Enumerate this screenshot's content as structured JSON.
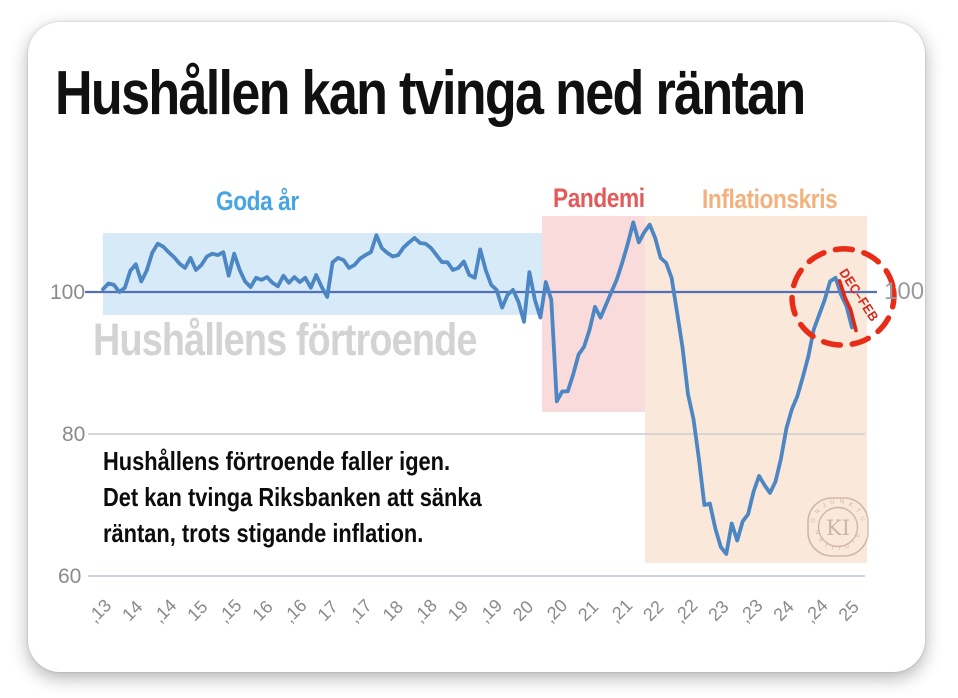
{
  "page": {
    "title": "Hushållen kan tvinga ned räntan"
  },
  "chart": {
    "watermark": "Hushållens förtroende",
    "regions": [
      {
        "label": "Goda år",
        "label_color": "#47a5e3",
        "band_color": "#d7eaf8"
      },
      {
        "label": "Pandemi",
        "label_color": "#e25a5a",
        "band_color": "#f8dbda"
      },
      {
        "label": "Inflationskris",
        "label_color": "#f3b17e",
        "band_color": "#fae8db"
      }
    ],
    "annotation": {
      "label": "DEC–FEB",
      "color": "#d8281c"
    },
    "y_axis_left": [
      "100",
      "80",
      "60"
    ],
    "y_axis_right": "100",
    "seal": {
      "monogram": "KI",
      "top_text": "KONJUNKTUR",
      "bottom_text": "INSTITUTET"
    }
  },
  "caption": {
    "line1": "Hushållens förtroende faller igen.",
    "line2": "Det kan tvinga Riksbanken att sänka",
    "line3": "räntan, trots stigande inflation."
  },
  "chart_data": {
    "type": "line",
    "title": "Hushållens förtroende",
    "baseline": 100,
    "y_ticks": [
      100,
      80,
      60
    ],
    "ylim": [
      58,
      112
    ],
    "grid": "horizontal",
    "x_tick_labels": [
      "‚13",
      "14",
      "‚14",
      "15",
      "‚15",
      "16",
      "‚16",
      "17",
      "‚17",
      "18",
      "‚18",
      "19",
      "‚19",
      "20",
      "‚20",
      "21",
      "‚21",
      "22",
      "‚22",
      "23",
      "‚23",
      "24",
      "‚24",
      "25"
    ],
    "regions": [
      {
        "label": "Goda år",
        "from_x_label": "‚13",
        "to_x_label": "20",
        "value_span": [
          96,
          108.5
        ]
      },
      {
        "label": "Pandemi",
        "from_x_label": "20",
        "to_x_label": "‚21",
        "value_span": [
          83,
          110.8
        ]
      },
      {
        "label": "Inflationskris",
        "from_x_label": "‚21",
        "to_x_label": "25",
        "value_span": [
          61.5,
          110.8
        ]
      }
    ],
    "highlight_last_points": 4,
    "series": [
      {
        "name": "Hushållens förtroende",
        "values": [
          100.4,
          101.2,
          101.0,
          100.0,
          100.6,
          103.0,
          103.9,
          101.5,
          103.0,
          105.5,
          106.8,
          106.4,
          105.6,
          104.9,
          104.0,
          103.4,
          104.8,
          103.1,
          103.8,
          105.0,
          105.4,
          105.2,
          105.6,
          102.3,
          105.4,
          103.1,
          101.5,
          100.7,
          102.0,
          101.7,
          102.1,
          101.3,
          100.8,
          102.3,
          101.3,
          102.1,
          101.4,
          102.0,
          100.6,
          102.4,
          100.7,
          99.3,
          104.2,
          104.8,
          104.5,
          103.4,
          103.8,
          104.7,
          105.2,
          105.6,
          108.0,
          106.2,
          105.5,
          105.0,
          105.2,
          106.3,
          107.0,
          107.6,
          106.9,
          106.8,
          106.2,
          105.2,
          104.2,
          104.2,
          103.1,
          103.4,
          104.3,
          102.4,
          102.0,
          106.0,
          103.1,
          101.0,
          100.3,
          97.8,
          99.6,
          100.3,
          98.6,
          95.8,
          102.8,
          98.9,
          96.4,
          101.4,
          98.9,
          84.6,
          86.0,
          86.0,
          88.4,
          91.2,
          92.3,
          94.7,
          97.9,
          96.4,
          98.2,
          100.0,
          101.8,
          104.2,
          106.8,
          109.8,
          107.0,
          108.4,
          109.5,
          107.6,
          104.8,
          104.1,
          102.0,
          97.1,
          92.2,
          85.6,
          82.1,
          76.5,
          70.0,
          70.2,
          66.7,
          64.1,
          63.1,
          67.4,
          65.0,
          67.7,
          68.7,
          71.9,
          74.1,
          72.8,
          71.7,
          73.3,
          76.5,
          80.8,
          83.5,
          85.3,
          88.0,
          90.9,
          94.7,
          96.8,
          98.9,
          101.5,
          102.0,
          99.6,
          98.0,
          95.0
        ]
      }
    ]
  }
}
